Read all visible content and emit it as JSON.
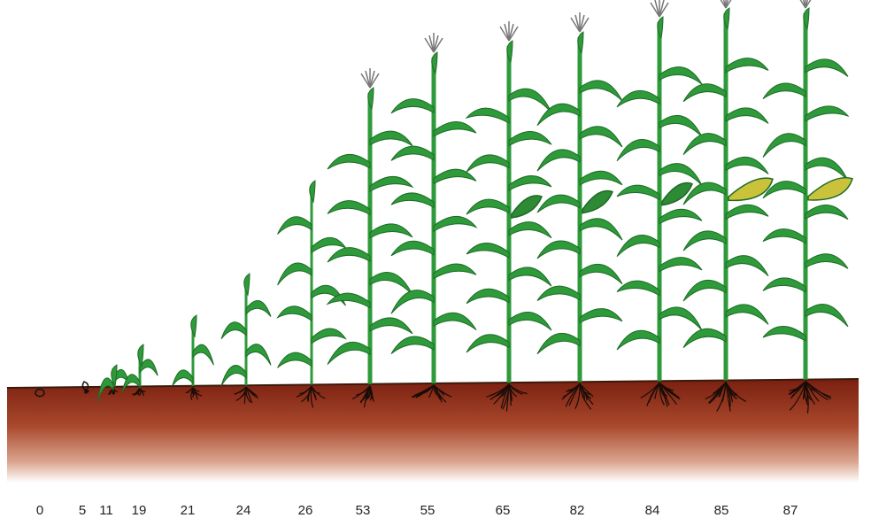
{
  "stages": [
    {
      "label": "0"
    },
    {
      "label": "5"
    },
    {
      "label": "11"
    },
    {
      "label": "19"
    },
    {
      "label": "21"
    },
    {
      "label": "24"
    },
    {
      "label": "26"
    },
    {
      "label": "53"
    },
    {
      "label": "55"
    },
    {
      "label": "65"
    },
    {
      "label": "82"
    },
    {
      "label": "84"
    },
    {
      "label": "85"
    },
    {
      "label": "87"
    }
  ]
}
